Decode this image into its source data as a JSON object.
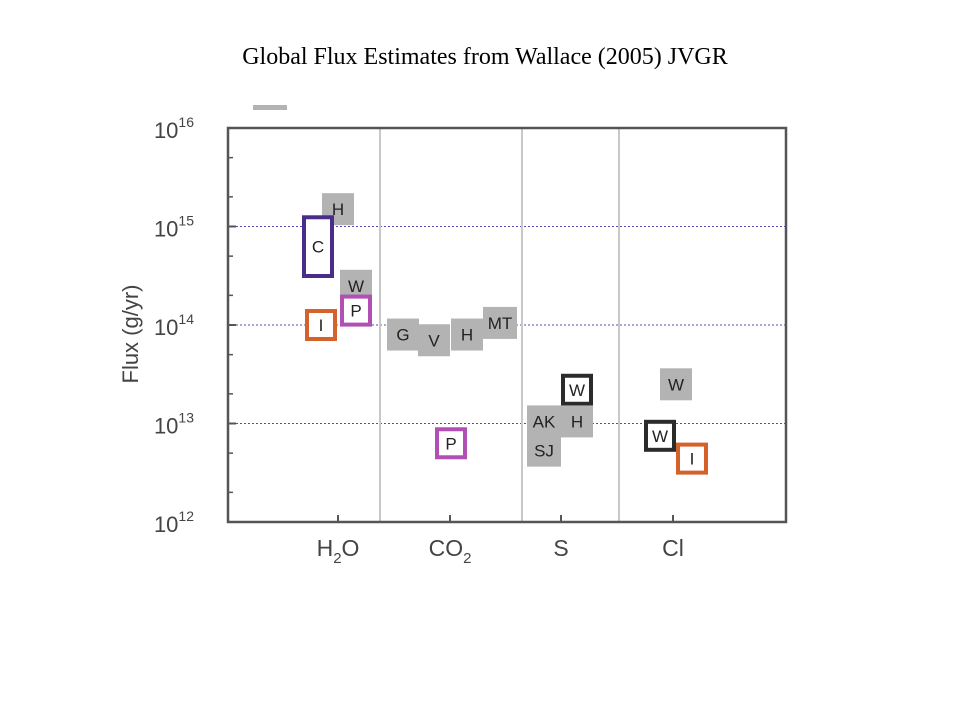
{
  "title": "Global Flux Estimates from Wallace (2005) JVGR",
  "colors": {
    "gray_box": "#b3b3b3",
    "c_box": "#4a2c8c",
    "i_box": "#d4622a",
    "p_box": "#b24fb4",
    "w_box": "#2b2b2b",
    "gridline": "#5a4ab0",
    "divider": "#c8c8c8",
    "axis": "#555555"
  },
  "chart_data": {
    "type": "scatter",
    "title": "",
    "xlabel": "",
    "ylabel": "Flux (g/yr)",
    "y_scale": "log",
    "ylim": [
      1000000000000.0,
      1e+16
    ],
    "y_ticks": [
      {
        "base": "10",
        "exp": "12",
        "value": 1000000000000.0
      },
      {
        "base": "10",
        "exp": "13",
        "value": 10000000000000.0
      },
      {
        "base": "10",
        "exp": "14",
        "value": 100000000000000.0
      },
      {
        "base": "10",
        "exp": "15",
        "value": 1000000000000000.0
      },
      {
        "base": "10",
        "exp": "16",
        "value": 1e+16
      }
    ],
    "categories": [
      {
        "main": "H",
        "sub": "2",
        "tail": "O"
      },
      {
        "main": "CO",
        "sub": "2",
        "tail": ""
      },
      {
        "main": "S",
        "sub": "",
        "tail": ""
      },
      {
        "main": "Cl",
        "sub": "",
        "tail": ""
      }
    ],
    "grid_y": [
      10000000000000.0,
      100000000000000.0,
      1000000000000000.0
    ],
    "points": [
      {
        "category": "H2O",
        "label": "H",
        "style": "gray",
        "y": 1500000000000000.0
      },
      {
        "category": "H2O",
        "label": "C",
        "style": "C",
        "y": 600000000000000.0,
        "ymin": 300000000000000.0,
        "ymax": 1300000000000000.0
      },
      {
        "category": "H2O",
        "label": "W",
        "style": "gray",
        "y": 250000000000000.0
      },
      {
        "category": "H2O",
        "label": "P",
        "style": "P",
        "y": 140000000000000.0
      },
      {
        "category": "H2O",
        "label": "I",
        "style": "I",
        "y": 100000000000000.0
      },
      {
        "category": "CO2",
        "label": "G",
        "style": "gray",
        "y": 80000000000000.0
      },
      {
        "category": "CO2",
        "label": "V",
        "style": "gray",
        "y": 70000000000000.0
      },
      {
        "category": "CO2",
        "label": "H",
        "style": "gray",
        "y": 80000000000000.0
      },
      {
        "category": "CO2",
        "label": "MT",
        "style": "gray",
        "y": 105000000000000.0
      },
      {
        "category": "CO2",
        "label": "P",
        "style": "P",
        "y": 6300000000000.0
      },
      {
        "category": "S",
        "label": "W",
        "style": "W",
        "y": 22000000000000.0
      },
      {
        "category": "S",
        "label": "AK",
        "style": "gray",
        "y": 10500000000000.0
      },
      {
        "category": "S",
        "label": "H",
        "style": "gray",
        "y": 10500000000000.0
      },
      {
        "category": "S",
        "label": "SJ",
        "style": "gray",
        "y": 5300000000000.0
      },
      {
        "category": "Cl",
        "label": "W",
        "style": "gray",
        "y": 25000000000000.0
      },
      {
        "category": "Cl",
        "label": "W",
        "style": "W",
        "y": 7500000000000.0
      },
      {
        "category": "Cl",
        "label": "I",
        "style": "I",
        "y": 4400000000000.0
      }
    ]
  }
}
